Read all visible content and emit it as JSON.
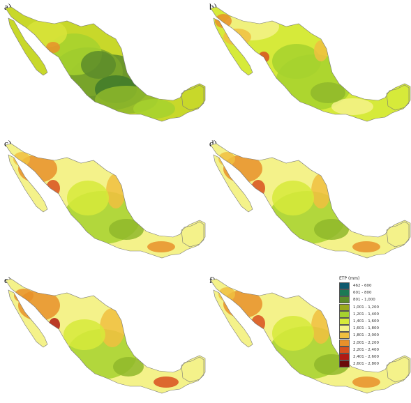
{
  "panels": [
    {
      "label": "a)",
      "scheme": "green"
    },
    {
      "label": "b)",
      "scheme": "warm1"
    },
    {
      "label": "c)",
      "scheme": "warm2"
    },
    {
      "label": "d)",
      "scheme": "warm2"
    },
    {
      "label": "e)",
      "scheme": "warm3"
    },
    {
      "label": "f)",
      "scheme": "warm2"
    }
  ],
  "legend": {
    "title": "ETP (mm)",
    "items": [
      {
        "label": "462 - 600",
        "color": "#0f5a6e"
      },
      {
        "label": "601 - 800",
        "color": "#1c7a55"
      },
      {
        "label": "801 - 1,000",
        "color": "#5c8c2a"
      },
      {
        "label": "1,001 - 1,200",
        "color": "#9aaa1e"
      },
      {
        "label": "1,201 - 1,400",
        "color": "#a6d22e"
      },
      {
        "label": "1,401 - 1,600",
        "color": "#d6ea3a"
      },
      {
        "label": "1,601 - 1,800",
        "color": "#f4f28a"
      },
      {
        "label": "1,801 - 2,000",
        "color": "#f0c040"
      },
      {
        "label": "2,001 - 2,200",
        "color": "#e8902a"
      },
      {
        "label": "2,201 - 2,400",
        "color": "#d8501e"
      },
      {
        "label": "2,401 - 2,600",
        "color": "#b01a14"
      },
      {
        "label": "2,601 - 2,800",
        "color": "#6a0a0a"
      }
    ]
  }
}
